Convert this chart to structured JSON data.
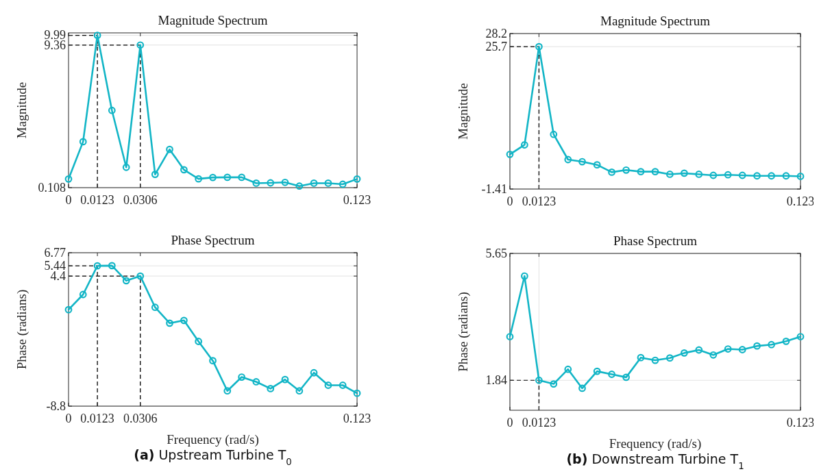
{
  "chart_data": [
    {
      "type": "line",
      "title": "Magnitude Spectrum",
      "ylabel": "Magnitude",
      "x": [
        0,
        0.0062,
        0.0123,
        0.0185,
        0.0246,
        0.0306,
        0.0369,
        0.0431,
        0.0492,
        0.0554,
        0.0615,
        0.0677,
        0.0738,
        0.08,
        0.0861,
        0.0923,
        0.0984,
        0.1046,
        0.1107,
        0.1169,
        0.123
      ],
      "series": [
        {
          "color": "#12b5c6",
          "values": [
            0.67,
            3.09,
            9.99,
            5.12,
            1.43,
            9.36,
            0.97,
            2.59,
            1.27,
            0.68,
            0.77,
            0.78,
            0.78,
            0.4,
            0.42,
            0.45,
            0.21,
            0.4,
            0.4,
            0.33,
            0.67
          ]
        }
      ],
      "xlim": [
        0,
        0.123
      ],
      "ylim": [
        0.108,
        10.15
      ],
      "xticks": [
        0,
        0.0123,
        0.0306,
        0.123
      ],
      "yticks": [
        0.108,
        9.36,
        9.99
      ],
      "grid": "y",
      "marker": "circle",
      "line_style": "solid",
      "ref_lines": [
        {
          "axis": "x",
          "value": 0.0123,
          "color": "#000000",
          "line_style": "dashed"
        },
        {
          "axis": "y",
          "value": 9.99,
          "color": "#000000",
          "line_style": "dashed"
        },
        {
          "axis": "x",
          "value": 0.0306,
          "color": "#000000",
          "line_style": "dashed"
        },
        {
          "axis": "y",
          "value": 9.36,
          "color": "#000000",
          "line_style": "dashed"
        }
      ]
    },
    {
      "type": "line",
      "title": "Magnitude Spectrum",
      "ylabel": "Magnitude",
      "x": [
        0,
        0.0062,
        0.0123,
        0.0185,
        0.0246,
        0.0306,
        0.0369,
        0.0431,
        0.0492,
        0.0554,
        0.0615,
        0.0677,
        0.0738,
        0.08,
        0.0861,
        0.0923,
        0.0984,
        0.1046,
        0.1107,
        0.1169,
        0.123
      ],
      "series": [
        {
          "color": "#12b5c6",
          "values": [
            5.2,
            7.0,
            25.7,
            9.0,
            4.2,
            3.8,
            3.2,
            1.8,
            2.2,
            1.9,
            1.9,
            1.4,
            1.6,
            1.4,
            1.2,
            1.3,
            1.2,
            1.1,
            1.1,
            1.1,
            1.0
          ]
        }
      ],
      "xlim": [
        0,
        0.123
      ],
      "ylim": [
        -1.41,
        28.2
      ],
      "xticks": [
        0,
        0.0123,
        0.123
      ],
      "yticks": [
        -1.41,
        25.7,
        28.2
      ],
      "grid": true,
      "marker": "circle",
      "line_style": "solid",
      "ref_lines": [
        {
          "axis": "x",
          "value": 0.0123,
          "color": "#000000",
          "line_style": "dashed"
        },
        {
          "axis": "y",
          "value": 25.7,
          "color": "#000000",
          "line_style": "dashed"
        }
      ]
    },
    {
      "type": "line",
      "title": "Phase Spectrum",
      "xlabel": "Frequency (rad/s)",
      "ylabel": "Phase (radians)",
      "annotations": [
        "(a) Upstream Turbine T$_{0}$"
      ],
      "x": [
        0,
        0.0062,
        0.0123,
        0.0185,
        0.0246,
        0.0306,
        0.0369,
        0.0431,
        0.0492,
        0.0554,
        0.0615,
        0.0677,
        0.0738,
        0.08,
        0.0861,
        0.0923,
        0.0984,
        0.1046,
        0.1107,
        0.1169,
        0.123
      ],
      "series": [
        {
          "color": "#12b5c6",
          "values": [
            0.99,
            2.53,
            5.44,
            5.46,
            3.93,
            4.4,
            1.23,
            -0.38,
            -0.1,
            -2.23,
            -4.19,
            -7.25,
            -5.85,
            -6.33,
            -7.02,
            -6.1,
            -7.25,
            -5.41,
            -6.68,
            -6.68,
            -7.49
          ]
        }
      ],
      "xlim": [
        0,
        0.123
      ],
      "ylim": [
        -8.8,
        6.77
      ],
      "xticks": [
        0,
        0.0123,
        0.0306,
        0.123
      ],
      "yticks": [
        -8.8,
        4.4,
        5.44,
        6.77
      ],
      "grid": "y",
      "marker": "circle",
      "line_style": "solid",
      "ref_lines": [
        {
          "axis": "x",
          "value": 0.0123,
          "color": "#000000",
          "line_style": "dashed"
        },
        {
          "axis": "y",
          "value": 5.44,
          "color": "#000000",
          "line_style": "dashed"
        },
        {
          "axis": "x",
          "value": 0.0306,
          "color": "#000000",
          "line_style": "dashed"
        },
        {
          "axis": "y",
          "value": 4.4,
          "color": "#000000",
          "line_style": "dashed"
        }
      ]
    },
    {
      "type": "line",
      "title": "Phase Spectrum",
      "xlabel": "Frequency (rad/s)",
      "ylabel": "Phase (radians)",
      "annotations": [
        "(b) Downstream Turbine T$_{1}$"
      ],
      "x": [
        0,
        0.0062,
        0.0123,
        0.0185,
        0.0246,
        0.0306,
        0.0369,
        0.0431,
        0.0492,
        0.0554,
        0.0615,
        0.0677,
        0.0738,
        0.08,
        0.0861,
        0.0923,
        0.0984,
        0.1046,
        0.1107,
        0.1169,
        0.123
      ],
      "series": [
        {
          "color": "#12b5c6",
          "values": [
            3.15,
            4.97,
            1.84,
            1.73,
            2.17,
            1.6,
            2.11,
            2.02,
            1.93,
            2.52,
            2.44,
            2.51,
            2.66,
            2.75,
            2.6,
            2.78,
            2.76,
            2.87,
            2.91,
            3.01,
            3.15
          ]
        }
      ],
      "xlim": [
        0,
        0.123
      ],
      "ylim": [
        0.94,
        5.65
      ],
      "xticks": [
        0,
        0.0123,
        0.123
      ],
      "yticks": [
        1.84,
        5.65
      ],
      "grid": true,
      "marker": "circle",
      "line_style": "solid",
      "ref_lines": [
        {
          "axis": "x",
          "value": 0.0123,
          "color": "#000000",
          "line_style": "dashed"
        },
        {
          "axis": "y",
          "value": 1.84,
          "color": "#000000",
          "line_style": "dashed"
        }
      ]
    }
  ]
}
